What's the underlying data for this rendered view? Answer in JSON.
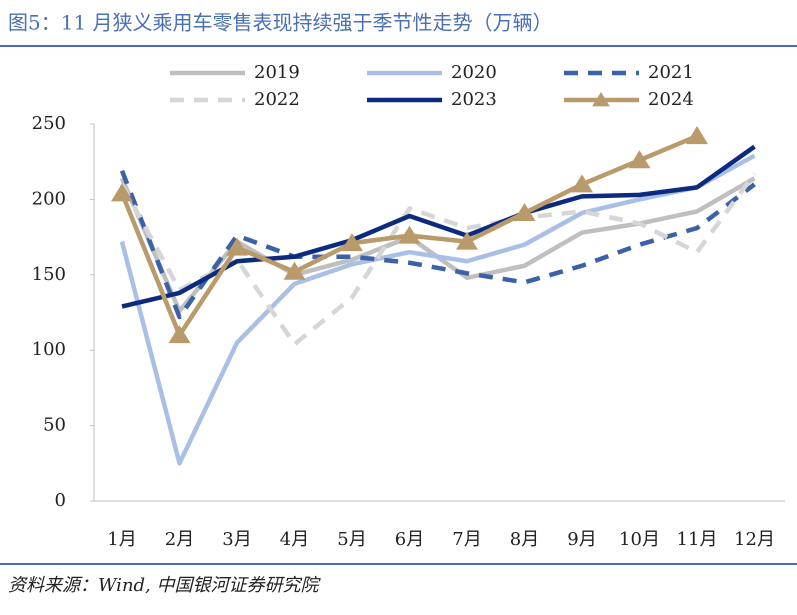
{
  "chart_data": {
    "type": "line",
    "title": "图5：11 月狭义乘用车零售表现持续强于季节性走势（万辆）",
    "source": "资料来源：Wind, 中国银河证券研究院",
    "categories": [
      "1月",
      "2月",
      "3月",
      "4月",
      "5月",
      "6月",
      "7月",
      "8月",
      "9月",
      "10月",
      "11月",
      "12月"
    ],
    "ylim": [
      0,
      250
    ],
    "yticks": [
      0,
      50,
      100,
      150,
      200,
      250
    ],
    "grid": false,
    "legend": "top",
    "series": [
      {
        "name": "2019",
        "color": "#bfbfbf",
        "dashed": false,
        "values": [
          214,
          126,
          172,
          150,
          160,
          175,
          148,
          156,
          178,
          184,
          192,
          214
        ]
      },
      {
        "name": "2020",
        "color": "#a9bfe6",
        "dashed": false,
        "values": [
          172,
          25,
          105,
          144,
          157,
          165,
          159,
          170,
          191,
          200,
          208,
          229
        ]
      },
      {
        "name": "2021",
        "color": "#3b62a8",
        "dashed": true,
        "values": [
          219,
          122,
          176,
          162,
          162,
          158,
          151,
          145,
          156,
          170,
          181,
          210
        ]
      },
      {
        "name": "2022",
        "color": "#d6d6d6",
        "dashed": true,
        "values": [
          210,
          140,
          160,
          104,
          135,
          194,
          181,
          188,
          192,
          184,
          165,
          217
        ]
      },
      {
        "name": "2023",
        "color": "#0c2b7f",
        "dashed": false,
        "values": [
          129,
          138,
          159,
          162,
          173,
          189,
          176,
          191,
          202,
          203,
          208,
          235
        ]
      },
      {
        "name": "2024",
        "color": "#b99a6a",
        "dashed": false,
        "marker": "triangle",
        "values": [
          204,
          110,
          168,
          152,
          171,
          176,
          172,
          191,
          210,
          226,
          242,
          null
        ]
      }
    ]
  }
}
